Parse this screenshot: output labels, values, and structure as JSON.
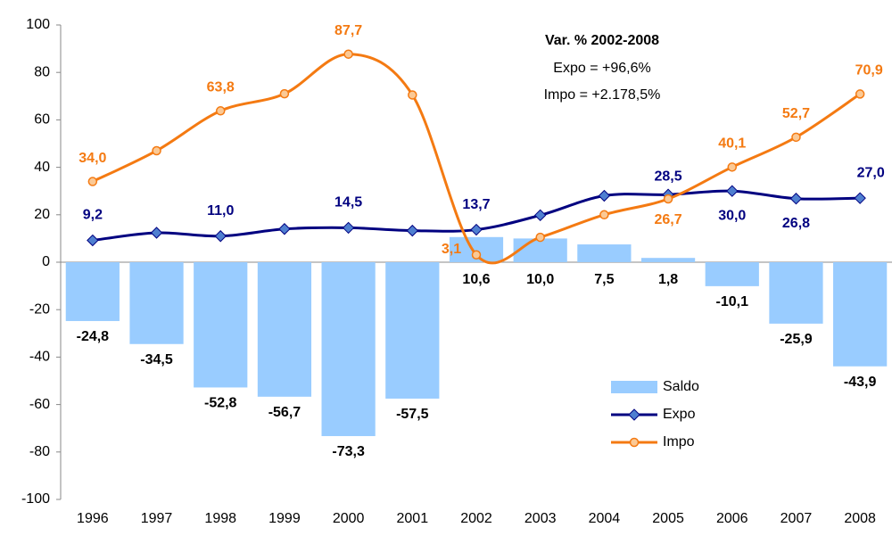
{
  "chart_data": {
    "type": "bar_line",
    "categories": [
      "1996",
      "1997",
      "1998",
      "1999",
      "2000",
      "2001",
      "2002",
      "2003",
      "2004",
      "2005",
      "2006",
      "2007",
      "2008"
    ],
    "series": [
      {
        "name": "Saldo",
        "type": "bar",
        "color": "#99ccff",
        "values": [
          -24.8,
          -34.5,
          -52.8,
          -56.7,
          -73.3,
          -57.5,
          10.6,
          10.0,
          7.5,
          1.8,
          -10.1,
          -25.9,
          -43.9
        ],
        "value_labels": [
          "-24,8",
          "-34,5",
          "-52,8",
          "-56,7",
          "-73,3",
          "-57,5",
          "10,6",
          "10,0",
          "7,5",
          "1,8",
          "-10,1",
          "-25,9",
          "-43,9"
        ]
      },
      {
        "name": "Expo",
        "type": "line",
        "color": "#000080",
        "marker": "diamond",
        "marker_color": "#4f7fd0",
        "values": [
          9.2,
          12.4,
          11.0,
          14.0,
          14.5,
          13.3,
          13.7,
          19.8,
          28.0,
          28.5,
          30.0,
          26.8,
          27.0
        ],
        "value_labels": [
          "9,2",
          null,
          "11,0",
          null,
          "14,5",
          null,
          "13,7",
          null,
          null,
          "28,5",
          "30,0",
          "26,8",
          "27,0"
        ]
      },
      {
        "name": "Impo",
        "type": "line",
        "color": "#f47a12",
        "marker": "circle",
        "marker_color": "#fbc995",
        "values": [
          34.0,
          47.0,
          63.8,
          71.0,
          87.7,
          70.5,
          3.1,
          10.5,
          20.0,
          26.7,
          40.1,
          52.7,
          70.9
        ],
        "value_labels": [
          "34,0",
          null,
          "63,8",
          null,
          "87,7",
          null,
          "3,1",
          null,
          null,
          "26,7",
          "40,1",
          "52,7",
          "70,9"
        ]
      }
    ],
    "ylim": [
      -100,
      100
    ],
    "yticks": [
      -100,
      -80,
      -60,
      -40,
      -20,
      0,
      20,
      40,
      60,
      80,
      100
    ],
    "grid": false,
    "legend": "lower right",
    "annotation": {
      "title": "Var. % 2002-2008",
      "lines": [
        "Expo = +96,6%",
        "Impo = +2.178,5%"
      ]
    }
  }
}
